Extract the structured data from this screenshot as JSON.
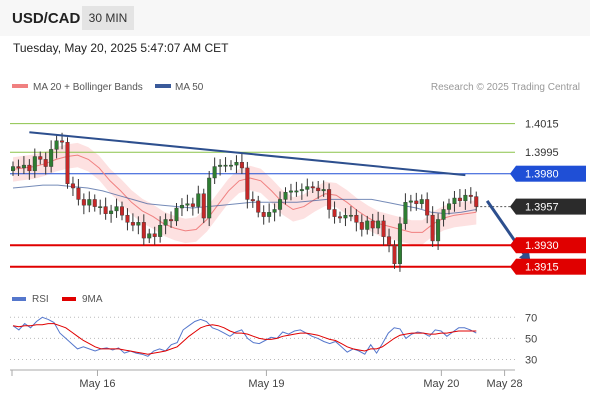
{
  "header": {
    "pair": "USD/CAD",
    "timeframe": "30 MIN",
    "timestamp": "Tuesday, May 20, 2025 5:47:07 AM CET"
  },
  "legend": {
    "ma20": "MA 20 + Bollinger Bands",
    "ma50": "MA 50",
    "credit": "Research © 2025 Trading Central"
  },
  "rsi_legend": {
    "rsi": "RSI",
    "ma9": "9MA"
  },
  "colors": {
    "up": "#2e7d32",
    "down": "#c62828",
    "ma20": "#f08080",
    "ma50": "#3a5a9a",
    "band": "#fcd7d7",
    "resistance": "#1f4fd6",
    "support": "#e00000",
    "target": "#8bc34a",
    "trend": "#2d4f8e",
    "rsi": "#5577cc",
    "rsi_ma": "#e00000"
  },
  "chart_data": [
    {
      "type": "candlestick",
      "title": "USD/CAD",
      "x_ticks": [
        "May 16",
        "May 19",
        "May 20",
        "May 28"
      ],
      "ylim": [
        1.3905,
        1.4035
      ],
      "levels": [
        {
          "value": 1.4015,
          "label": "1.4015",
          "kind": "target"
        },
        {
          "value": 1.3995,
          "label": "1.3995",
          "kind": "target"
        },
        {
          "value": 1.398,
          "label": "1.3980",
          "kind": "resistance"
        },
        {
          "value": 1.3957,
          "label": "1.3957",
          "kind": "last"
        },
        {
          "value": 1.393,
          "label": "1.3930",
          "kind": "support"
        },
        {
          "value": 1.3915,
          "label": "1.3915",
          "kind": "support"
        }
      ],
      "trendline": [
        [
          3,
          1.4009
        ],
        [
          83,
          1.3979
        ]
      ],
      "forecast": [
        [
          87,
          1.3961
        ],
        [
          95,
          1.3917
        ]
      ],
      "close": [
        1.3985,
        1.3984,
        1.3986,
        1.3982,
        1.3992,
        1.399,
        1.3985,
        1.3997,
        1.4003,
        1.4002,
        1.3973,
        1.397,
        1.3962,
        1.3958,
        1.3962,
        1.3957,
        1.3957,
        1.3952,
        1.3954,
        1.3957,
        1.3951,
        1.3946,
        1.3944,
        1.3946,
        1.3935,
        1.3938,
        1.3936,
        1.3944,
        1.3948,
        1.3947,
        1.3956,
        1.3958,
        1.3959,
        1.3957,
        1.3966,
        1.3949,
        1.3977,
        1.3985,
        1.3986,
        1.3986,
        1.3986,
        1.3988,
        1.3984,
        1.3962,
        1.3961,
        1.3953,
        1.395,
        1.3953,
        1.3955,
        1.3962,
        1.3967,
        1.3968,
        1.3968,
        1.3969,
        1.3971,
        1.397,
        1.3968,
        1.3969,
        1.3955,
        1.395,
        1.3949,
        1.3951,
        1.3951,
        1.3946,
        1.3941,
        1.3947,
        1.3942,
        1.3947,
        1.3936,
        1.393,
        1.3917,
        1.3945,
        1.396,
        1.3961,
        1.3959,
        1.3962,
        1.3951,
        1.3933,
        1.3948,
        1.3955,
        1.3959,
        1.3963,
        1.3961,
        1.3965,
        1.3964,
        1.3957
      ],
      "ma20": [
        1.3983,
        1.3984,
        1.3985,
        1.3987,
        1.399,
        1.3992,
        1.3993,
        1.399,
        1.3984,
        1.3975,
        1.3968,
        1.396,
        1.3954,
        1.395,
        1.3945,
        1.3942,
        1.394,
        1.3941,
        1.3948,
        1.3958,
        1.3968,
        1.3975,
        1.3977,
        1.3975,
        1.3968,
        1.396,
        1.3955,
        1.3957,
        1.3962,
        1.3966,
        1.3965,
        1.396,
        1.3954,
        1.3949,
        1.3945,
        1.3943,
        1.3941,
        1.3939,
        1.3939,
        1.3945,
        1.3949,
        1.3951,
        1.3952,
        1.3953
      ],
      "ma50": [
        1.397,
        1.3971,
        1.3972,
        1.3972,
        1.3971,
        1.397,
        1.3968,
        1.3965,
        1.3962,
        1.3959,
        1.3958,
        1.3957,
        1.3956,
        1.3957,
        1.3958,
        1.3959,
        1.396,
        1.396,
        1.396,
        1.396,
        1.3961,
        1.3962,
        1.3962,
        1.3962,
        1.3962,
        1.396,
        1.3958,
        1.3956,
        1.3953,
        1.3952,
        1.3953,
        1.3955
      ]
    },
    {
      "type": "line",
      "title": "RSI",
      "y_ticks": [
        70,
        50,
        30
      ],
      "ylim": [
        20,
        75
      ],
      "series": [
        {
          "name": "RSI",
          "values": [
            62,
            58,
            64,
            60,
            66,
            70,
            68,
            65,
            55,
            50,
            45,
            40,
            42,
            40,
            38,
            40,
            41,
            39,
            41,
            36,
            38,
            36,
            35,
            33,
            38,
            40,
            38,
            44,
            46,
            58,
            62,
            66,
            68,
            66,
            60,
            58,
            55,
            52,
            56,
            58,
            50,
            46,
            45,
            48,
            51,
            50,
            56,
            54,
            57,
            58,
            55,
            52,
            50,
            47,
            45,
            47,
            42,
            37,
            40,
            38,
            35,
            44,
            36,
            45,
            55,
            60,
            59,
            50,
            54,
            56,
            55,
            52,
            58,
            57,
            52,
            56,
            60,
            60,
            58,
            55
          ]
        },
        {
          "name": "9MA",
          "values": [
            62,
            61,
            62,
            62,
            63,
            63,
            64,
            64,
            62,
            60,
            56,
            52,
            48,
            45,
            42,
            40,
            40,
            40,
            40,
            39,
            38,
            37,
            36,
            35,
            36,
            37,
            38,
            40,
            42,
            47,
            52,
            56,
            60,
            62,
            63,
            62,
            60,
            57,
            55,
            55,
            54,
            52,
            50,
            49,
            49,
            50,
            52,
            53,
            54,
            55,
            55,
            54,
            53,
            51,
            49,
            48,
            45,
            42,
            40,
            39,
            38,
            40,
            40,
            42,
            46,
            50,
            53,
            54,
            55,
            55,
            55,
            54,
            54,
            55,
            55,
            56,
            57,
            57,
            57,
            57
          ]
        }
      ]
    }
  ]
}
